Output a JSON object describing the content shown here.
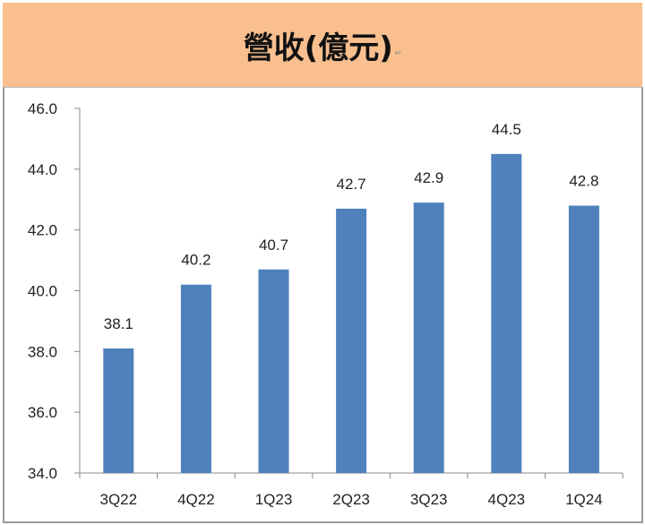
{
  "header": {
    "title": "營收(億元)",
    "mark": "↵",
    "background": "#F9BF8F"
  },
  "chart_data": {
    "type": "bar",
    "title": "營收(億元)",
    "categories": [
      "3Q22",
      "4Q22",
      "1Q23",
      "2Q23",
      "3Q23",
      "4Q23",
      "1Q24"
    ],
    "values": [
      38.1,
      40.2,
      40.7,
      42.7,
      42.9,
      44.5,
      42.8
    ],
    "data_labels": [
      "38.1",
      "40.2",
      "40.7",
      "42.7",
      "42.9",
      "44.5",
      "42.8"
    ],
    "yticks": [
      "34.0",
      "36.0",
      "38.0",
      "40.0",
      "42.0",
      "44.0",
      "46.0"
    ],
    "ylim": [
      34,
      46
    ],
    "xlabel": "",
    "ylabel": "",
    "grid": false,
    "bar_color": "#4F81BD"
  }
}
